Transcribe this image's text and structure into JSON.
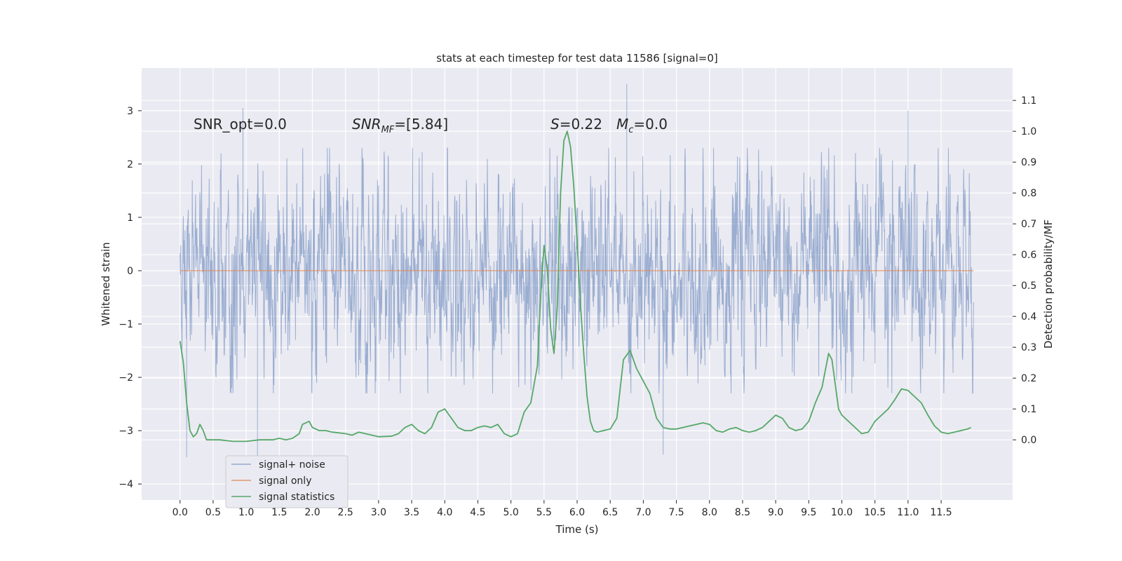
{
  "chart_data": {
    "type": "line",
    "title": "stats at each timestep for test data 11586 [signal=0]",
    "xlabel": "Time (s)",
    "ylabel": "Whitened strain",
    "ylabel_right": "Detection probability/MF",
    "xlim": [
      -0.58,
      12.58
    ],
    "ylim": [
      -4.3,
      3.8
    ],
    "ylim_right": [
      -0.195,
      1.205
    ],
    "x_ticks": [
      "0.0",
      "0.5",
      "1.0",
      "1.5",
      "2.0",
      "2.5",
      "3.0",
      "3.5",
      "4.0",
      "4.5",
      "5.0",
      "5.5",
      "6.0",
      "6.5",
      "7.0",
      "7.5",
      "8.0",
      "8.5",
      "9.0",
      "9.5",
      "10.0",
      "10.5",
      "11.0",
      "11.5"
    ],
    "y_ticks": [
      "3",
      "2",
      "1",
      "0",
      "−1",
      "−2",
      "−3",
      "−4"
    ],
    "y_ticks_right": [
      "1.1",
      "1.0",
      "0.9",
      "0.8",
      "0.7",
      "0.6",
      "0.5",
      "0.4",
      "0.3",
      "0.2",
      "0.1",
      "0.0"
    ],
    "grid": true,
    "legend_position": "lower-left",
    "annotations": {
      "snr_opt": "SNR_opt=0.0",
      "snr_mf_main": "SNR",
      "snr_mf_sub": "MF",
      "snr_mf_rest": "=[5.84]",
      "s_label": "S",
      "s_value": "=0.22",
      "mc_label": "M",
      "mc_sub": "c",
      "mc_value": "=0.0"
    },
    "series": [
      {
        "name": "signal+ noise",
        "color": "#4c72b0",
        "style": "dense noise",
        "x_range": [
          0.0,
          11.99
        ],
        "envelope_upper": 2.3,
        "envelope_lower": -2.3,
        "extrema": [
          {
            "x": 0.95,
            "y": 3.05
          },
          {
            "x": 1.17,
            "y": -3.7
          },
          {
            "x": 0.1,
            "y": -3.5
          },
          {
            "x": 6.75,
            "y": 3.5
          },
          {
            "x": 7.3,
            "y": -3.45
          },
          {
            "x": 11.0,
            "y": 3.0
          }
        ]
      },
      {
        "name": "signal only",
        "color": "#dd8452",
        "x": [
          0.0,
          11.99
        ],
        "y": [
          0.0,
          0.0
        ]
      },
      {
        "name": "signal statistics",
        "color": "#55a868",
        "axis": "right",
        "x": [
          0.0,
          0.05,
          0.1,
          0.15,
          0.2,
          0.25,
          0.3,
          0.35,
          0.4,
          0.5,
          0.6,
          0.8,
          1.0,
          1.2,
          1.4,
          1.5,
          1.6,
          1.7,
          1.8,
          1.85,
          1.95,
          2.0,
          2.1,
          2.2,
          2.3,
          2.5,
          2.6,
          2.7,
          2.8,
          3.0,
          3.2,
          3.3,
          3.4,
          3.5,
          3.6,
          3.7,
          3.8,
          3.9,
          4.0,
          4.1,
          4.2,
          4.3,
          4.4,
          4.5,
          4.6,
          4.7,
          4.8,
          4.9,
          5.0,
          5.1,
          5.2,
          5.3,
          5.4,
          5.45,
          5.5,
          5.55,
          5.6,
          5.65,
          5.7,
          5.75,
          5.8,
          5.85,
          5.9,
          5.95,
          6.0,
          6.05,
          6.1,
          6.15,
          6.2,
          6.25,
          6.3,
          6.4,
          6.5,
          6.6,
          6.7,
          6.8,
          6.85,
          6.9,
          7.0,
          7.1,
          7.2,
          7.3,
          7.4,
          7.5,
          7.6,
          7.7,
          7.8,
          7.9,
          8.0,
          8.1,
          8.2,
          8.3,
          8.4,
          8.5,
          8.6,
          8.7,
          8.8,
          8.9,
          9.0,
          9.1,
          9.2,
          9.3,
          9.4,
          9.5,
          9.6,
          9.7,
          9.8,
          9.85,
          9.9,
          9.95,
          10.0,
          10.1,
          10.2,
          10.3,
          10.4,
          10.5,
          10.6,
          10.7,
          10.8,
          10.9,
          11.0,
          11.1,
          11.2,
          11.3,
          11.4,
          11.5,
          11.6,
          11.7,
          11.8,
          11.9,
          11.95
        ],
        "y": [
          0.32,
          0.25,
          0.12,
          0.03,
          0.01,
          0.02,
          0.05,
          0.03,
          0.0,
          0.0,
          0.0,
          -0.005,
          -0.005,
          0.0,
          0.0,
          0.005,
          0.0,
          0.005,
          0.02,
          0.05,
          0.06,
          0.04,
          0.03,
          0.03,
          0.025,
          0.02,
          0.015,
          0.025,
          0.02,
          0.01,
          0.012,
          0.02,
          0.04,
          0.05,
          0.03,
          0.02,
          0.04,
          0.09,
          0.1,
          0.07,
          0.04,
          0.03,
          0.03,
          0.04,
          0.045,
          0.04,
          0.05,
          0.02,
          0.01,
          0.02,
          0.09,
          0.12,
          0.24,
          0.47,
          0.63,
          0.55,
          0.36,
          0.28,
          0.43,
          0.8,
          0.97,
          1.0,
          0.95,
          0.82,
          0.64,
          0.44,
          0.28,
          0.14,
          0.06,
          0.03,
          0.025,
          0.03,
          0.035,
          0.07,
          0.26,
          0.29,
          0.26,
          0.23,
          0.19,
          0.15,
          0.07,
          0.04,
          0.035,
          0.035,
          0.04,
          0.045,
          0.05,
          0.055,
          0.05,
          0.03,
          0.025,
          0.035,
          0.04,
          0.03,
          0.025,
          0.03,
          0.04,
          0.06,
          0.08,
          0.07,
          0.04,
          0.03,
          0.035,
          0.06,
          0.12,
          0.17,
          0.28,
          0.26,
          0.18,
          0.1,
          0.08,
          0.06,
          0.04,
          0.02,
          0.025,
          0.06,
          0.08,
          0.1,
          0.13,
          0.165,
          0.16,
          0.14,
          0.12,
          0.08,
          0.045,
          0.025,
          0.02,
          0.025,
          0.03,
          0.035,
          0.04
        ]
      }
    ]
  }
}
